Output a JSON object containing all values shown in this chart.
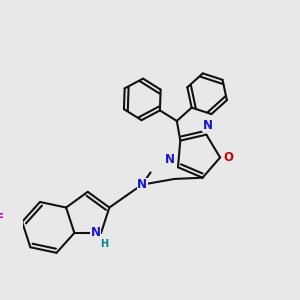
{
  "bg": "#e8e8e8",
  "bc": "#111111",
  "bw": 1.5,
  "dbo": 0.014,
  "N_col": "#1414cc",
  "O_col": "#cc0000",
  "F_col": "#cc00cc",
  "H_col": "#008888",
  "fs": 8.5,
  "fs_s": 7.0,
  "fig_size": [
    3.0,
    3.0
  ],
  "dpi": 100,
  "xlim": [
    0.0,
    1.0
  ],
  "ylim": [
    0.0,
    1.0
  ]
}
